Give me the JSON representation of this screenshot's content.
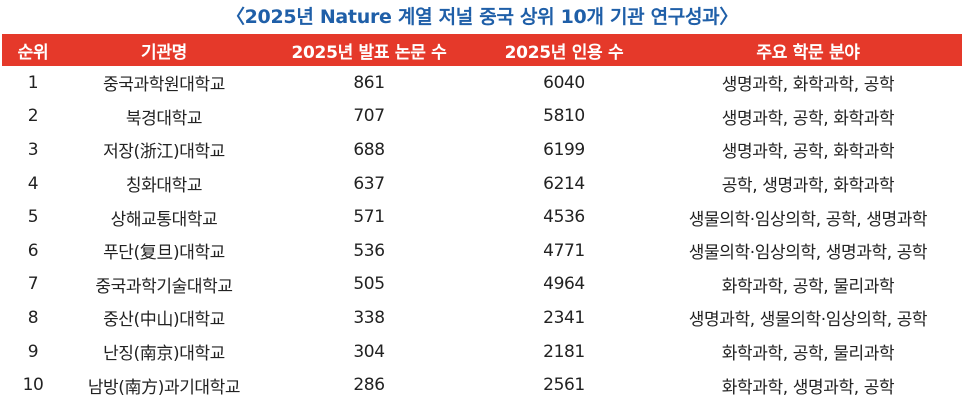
{
  "title": "〈2025년 Nature 계열 저널 중국 상위 10개 기관 연구성과〉",
  "table": {
    "headers": [
      "순위",
      "기관명",
      "2025년 발표 논문 수",
      "2025년 인용 수",
      "주요 학문 분야"
    ],
    "rows": [
      [
        "1",
        "중국과학원대학교",
        "861",
        "6040",
        "생명과학, 화학과학, 공학"
      ],
      [
        "2",
        "북경대학교",
        "707",
        "5810",
        "생명과학, 공학, 화학과학"
      ],
      [
        "3",
        "저장(浙江)대학교",
        "688",
        "6199",
        "생명과학, 공학, 화학과학"
      ],
      [
        "4",
        "칭화대학교",
        "637",
        "6214",
        "공학, 생명과학, 화학과학"
      ],
      [
        "5",
        "상해교통대학교",
        "571",
        "4536",
        "생물의학·임상의학, 공학, 생명과학"
      ],
      [
        "6",
        "푸단(复旦)대학교",
        "536",
        "4771",
        "생물의학·임상의학, 생명과학, 공학"
      ],
      [
        "7",
        "중국과학기술대학교",
        "505",
        "4964",
        "화학과학, 공학, 물리과학"
      ],
      [
        "8",
        "중산(中山)대학교",
        "338",
        "2341",
        "생명과학, 생물의학·임상의학, 공학"
      ],
      [
        "9",
        "난징(南京)대학교",
        "304",
        "2181",
        "화학과학, 공학, 물리과학"
      ],
      [
        "10",
        "남방(南方)과기대학교",
        "286",
        "2561",
        "화학과학, 생명과학, 공학"
      ]
    ]
  },
  "colors": {
    "title": "#1f5fa8",
    "header_bg": "#e5392a",
    "header_text": "#ffffff"
  }
}
